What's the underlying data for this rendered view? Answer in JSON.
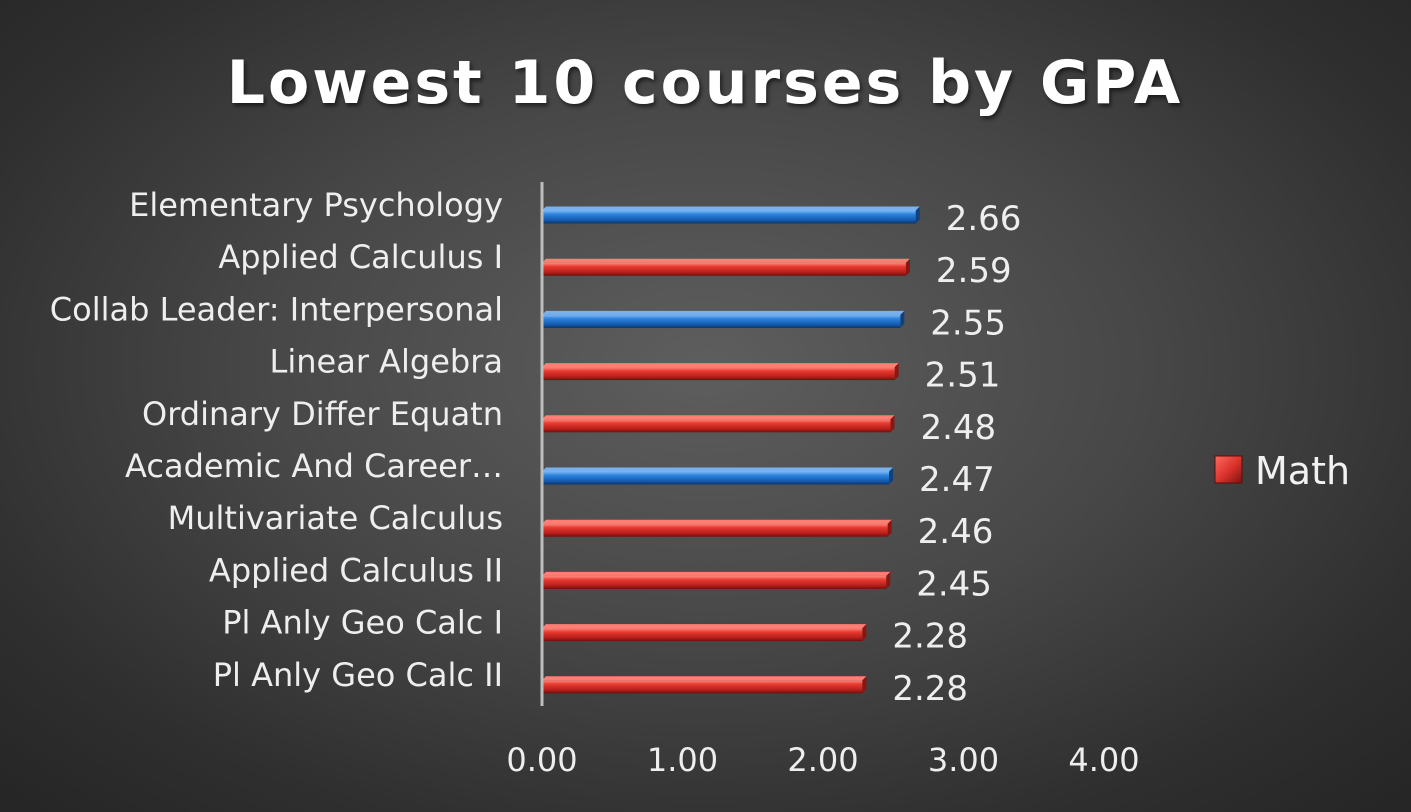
{
  "chart_data": {
    "type": "bar",
    "orientation": "horizontal",
    "title": "Lowest 10 courses by GPA",
    "categories": [
      "Elementary Psychology",
      "Applied Calculus I",
      "Collab Leader: Interpersonal",
      "Linear Algebra",
      "Ordinary Differ Equatn",
      "Academic And Career…",
      "Multivariate Calculus",
      "Applied Calculus II",
      "Pl Anly Geo Calc I",
      "Pl Anly Geo Calc II"
    ],
    "values": [
      2.66,
      2.59,
      2.55,
      2.51,
      2.48,
      2.47,
      2.46,
      2.45,
      2.28,
      2.28
    ],
    "value_labels": [
      "2.66",
      "2.59",
      "2.55",
      "2.51",
      "2.48",
      "2.47",
      "2.46",
      "2.45",
      "2.28",
      "2.28"
    ],
    "bar_groups": [
      "other",
      "math",
      "other",
      "math",
      "math",
      "other",
      "math",
      "math",
      "math",
      "math"
    ],
    "series": [
      {
        "name": "Math",
        "color": "#e0302c"
      }
    ],
    "other_color": "#1f73d1",
    "xlim": [
      0,
      4
    ],
    "xticks": [
      0,
      1,
      2,
      3,
      4
    ],
    "xtick_labels": [
      "0.00",
      "1.00",
      "2.00",
      "3.00",
      "4.00"
    ],
    "xlabel": "",
    "ylabel": "",
    "grid": false,
    "legend_position": "right"
  }
}
